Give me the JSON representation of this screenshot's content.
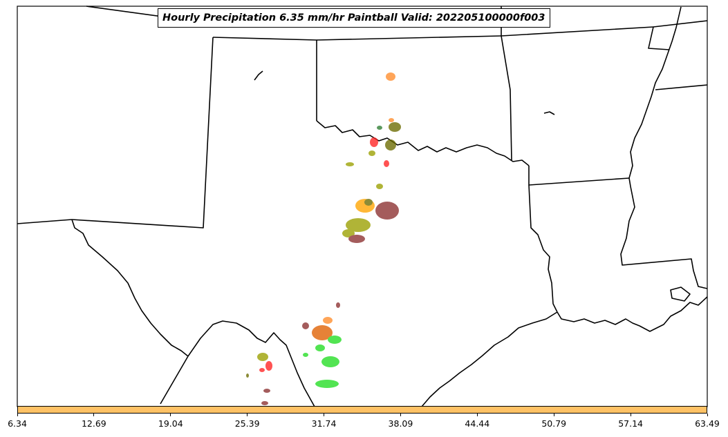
{
  "title": "Hourly Precipitation 6.35 mm/hr Paintball Valid: 202205100000f003",
  "colors": {
    "colorbar_fill": "#ffc266",
    "member_colors": [
      "#ff8c2a",
      "#2e7d32",
      "#6b6b00",
      "#ff2222",
      "#9aa000",
      "#ffa500",
      "#8b2f2f",
      "#22dd22",
      "#e06000"
    ]
  },
  "colorbar": {
    "ticks": [
      "6.34",
      "12.69",
      "19.04",
      "25.39",
      "31.74",
      "38.09",
      "44.44",
      "50.79",
      "57.14",
      "63.49"
    ]
  }
}
